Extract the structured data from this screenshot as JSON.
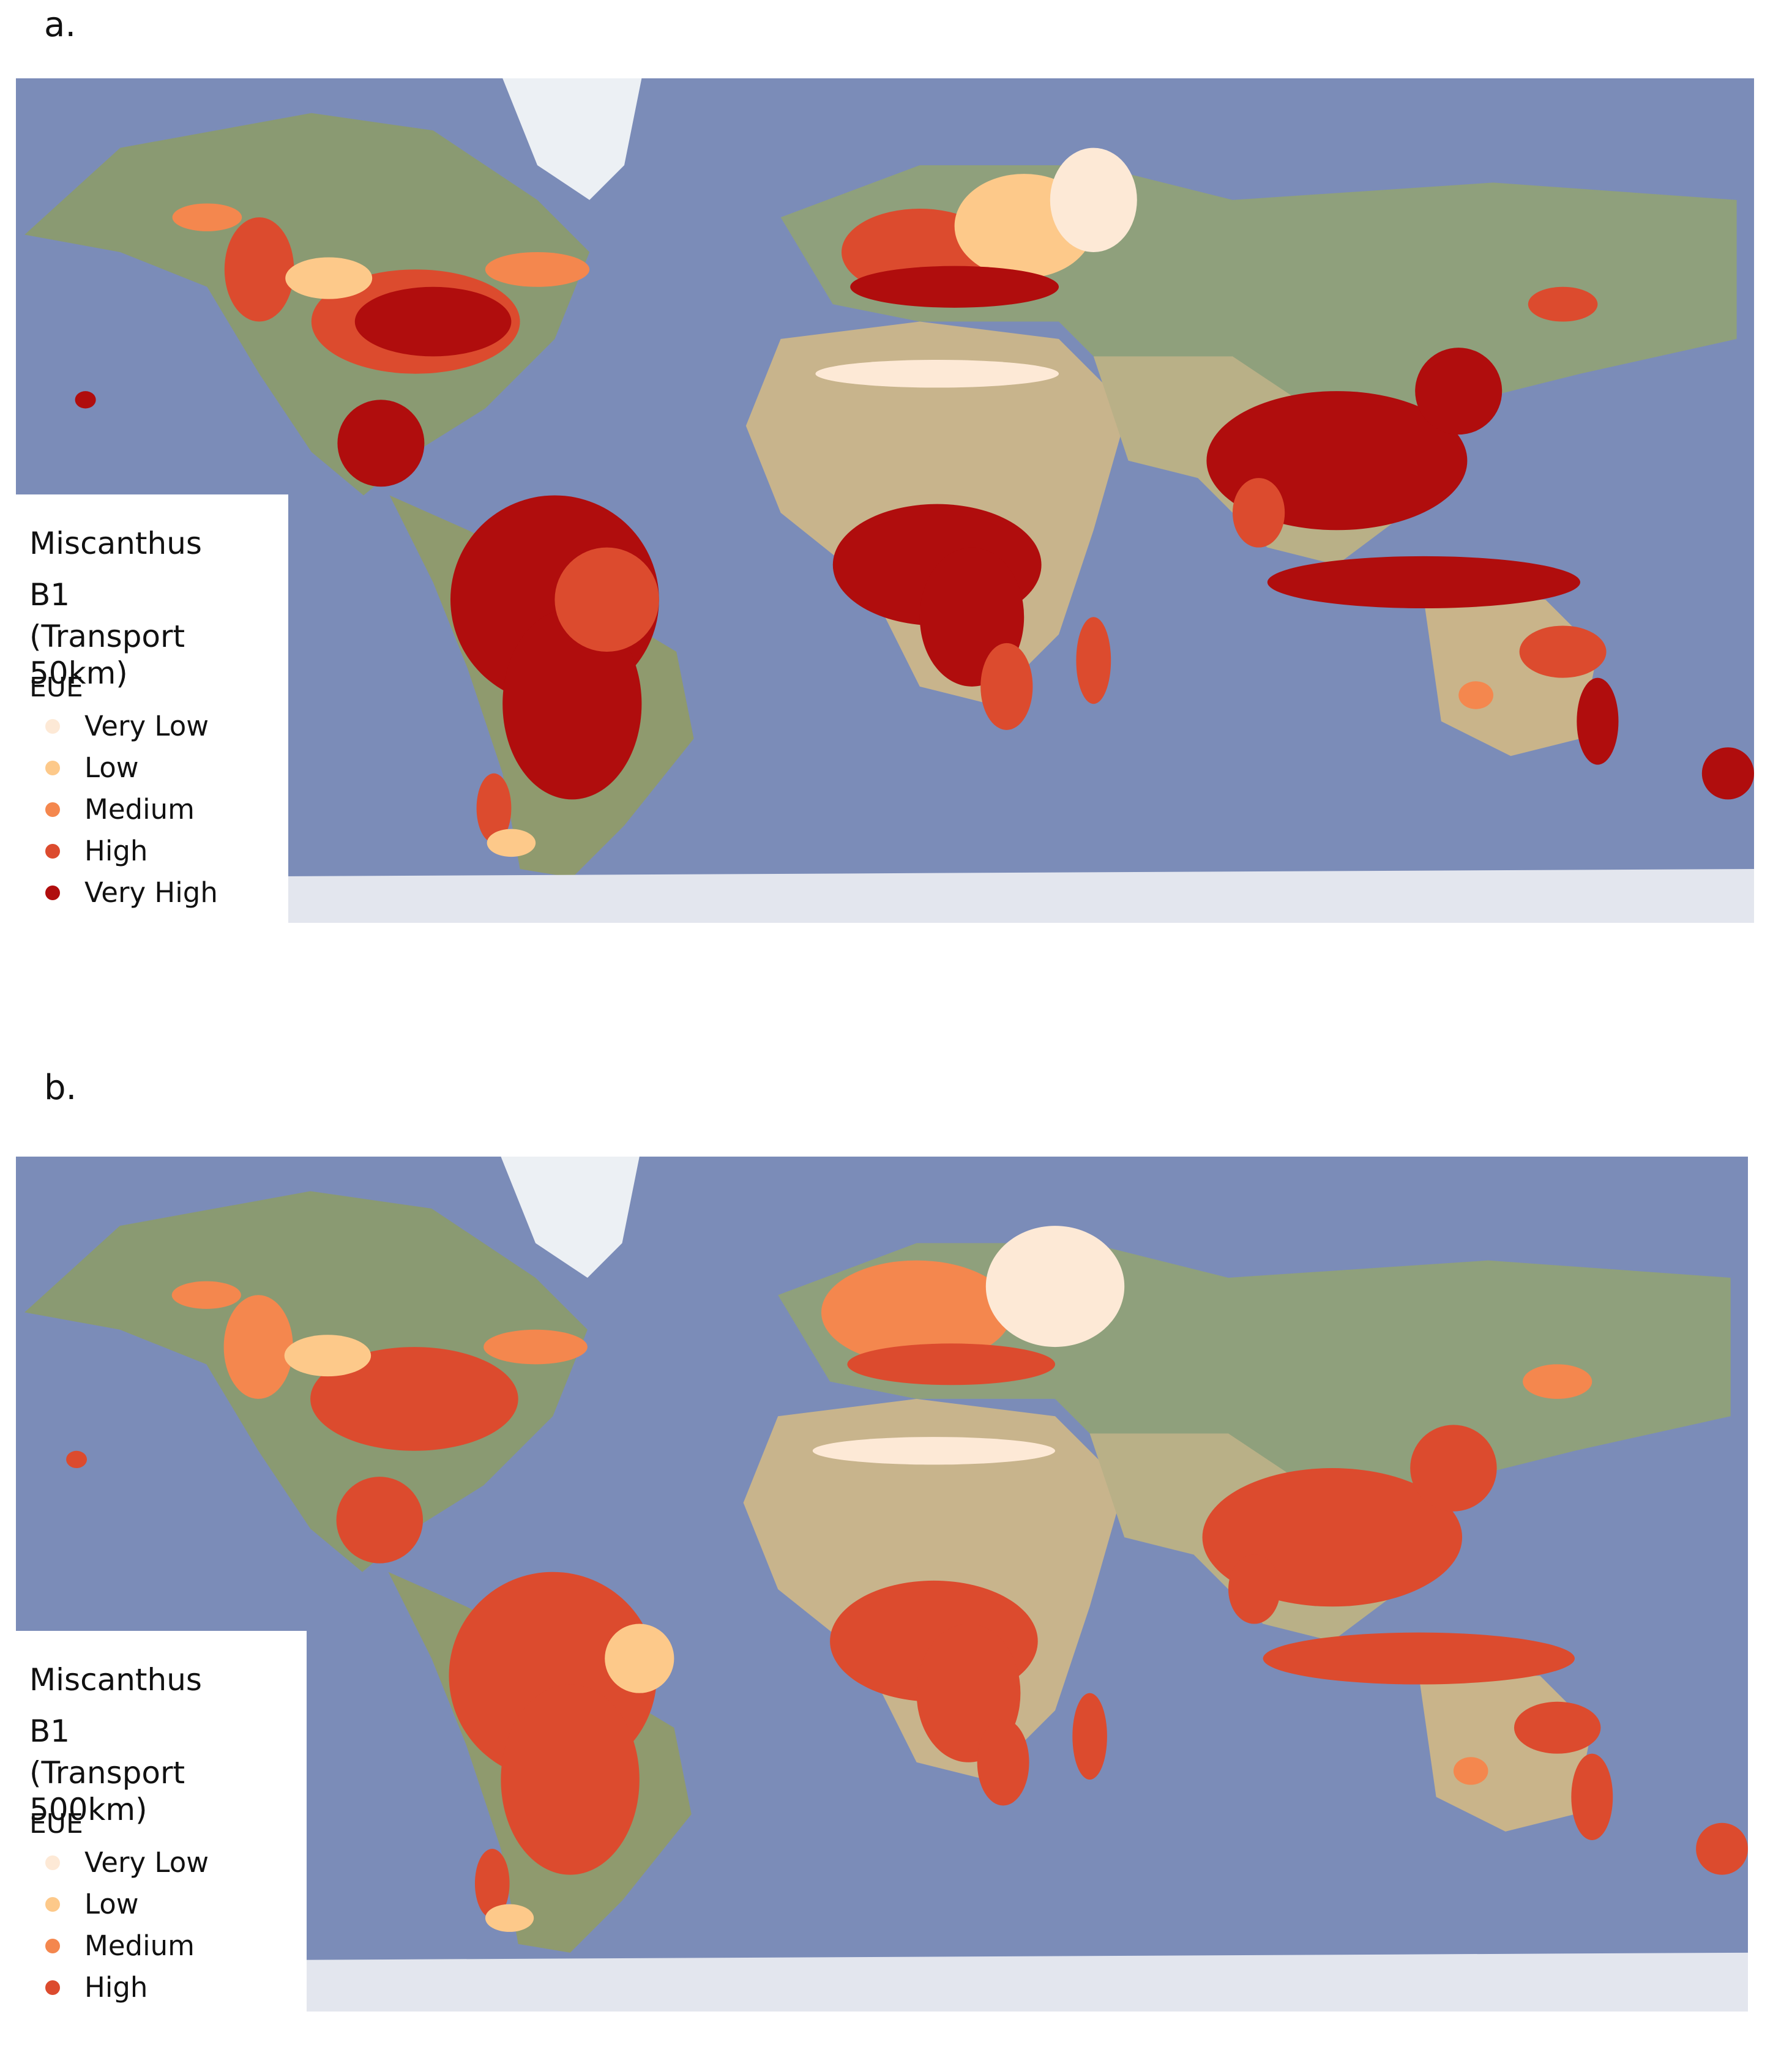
{
  "panels": [
    {
      "label": "a.",
      "legend": {
        "title": [
          "Miscanthus",
          "B1",
          "(Transport 50km)"
        ],
        "field": "EUE",
        "items": [
          {
            "label": "Very Low",
            "color": "#fde9d6"
          },
          {
            "label": "Low",
            "color": "#fdc98a"
          },
          {
            "label": "Medium",
            "color": "#f4874e"
          },
          {
            "label": "High",
            "color": "#dc4b2e"
          },
          {
            "label": "Very High",
            "color": "#b00d0d"
          }
        ]
      }
    },
    {
      "label": "b.",
      "legend": {
        "title": [
          "Miscanthus",
          "B1",
          "(Transport 500km)"
        ],
        "field": "EUE",
        "items": [
          {
            "label": "Very Low",
            "color": "#fde9d6"
          },
          {
            "label": "Low",
            "color": "#fdc98a"
          },
          {
            "label": "Medium",
            "color": "#f4874e"
          },
          {
            "label": "High",
            "color": "#dc4b2e"
          }
        ]
      }
    }
  ]
}
